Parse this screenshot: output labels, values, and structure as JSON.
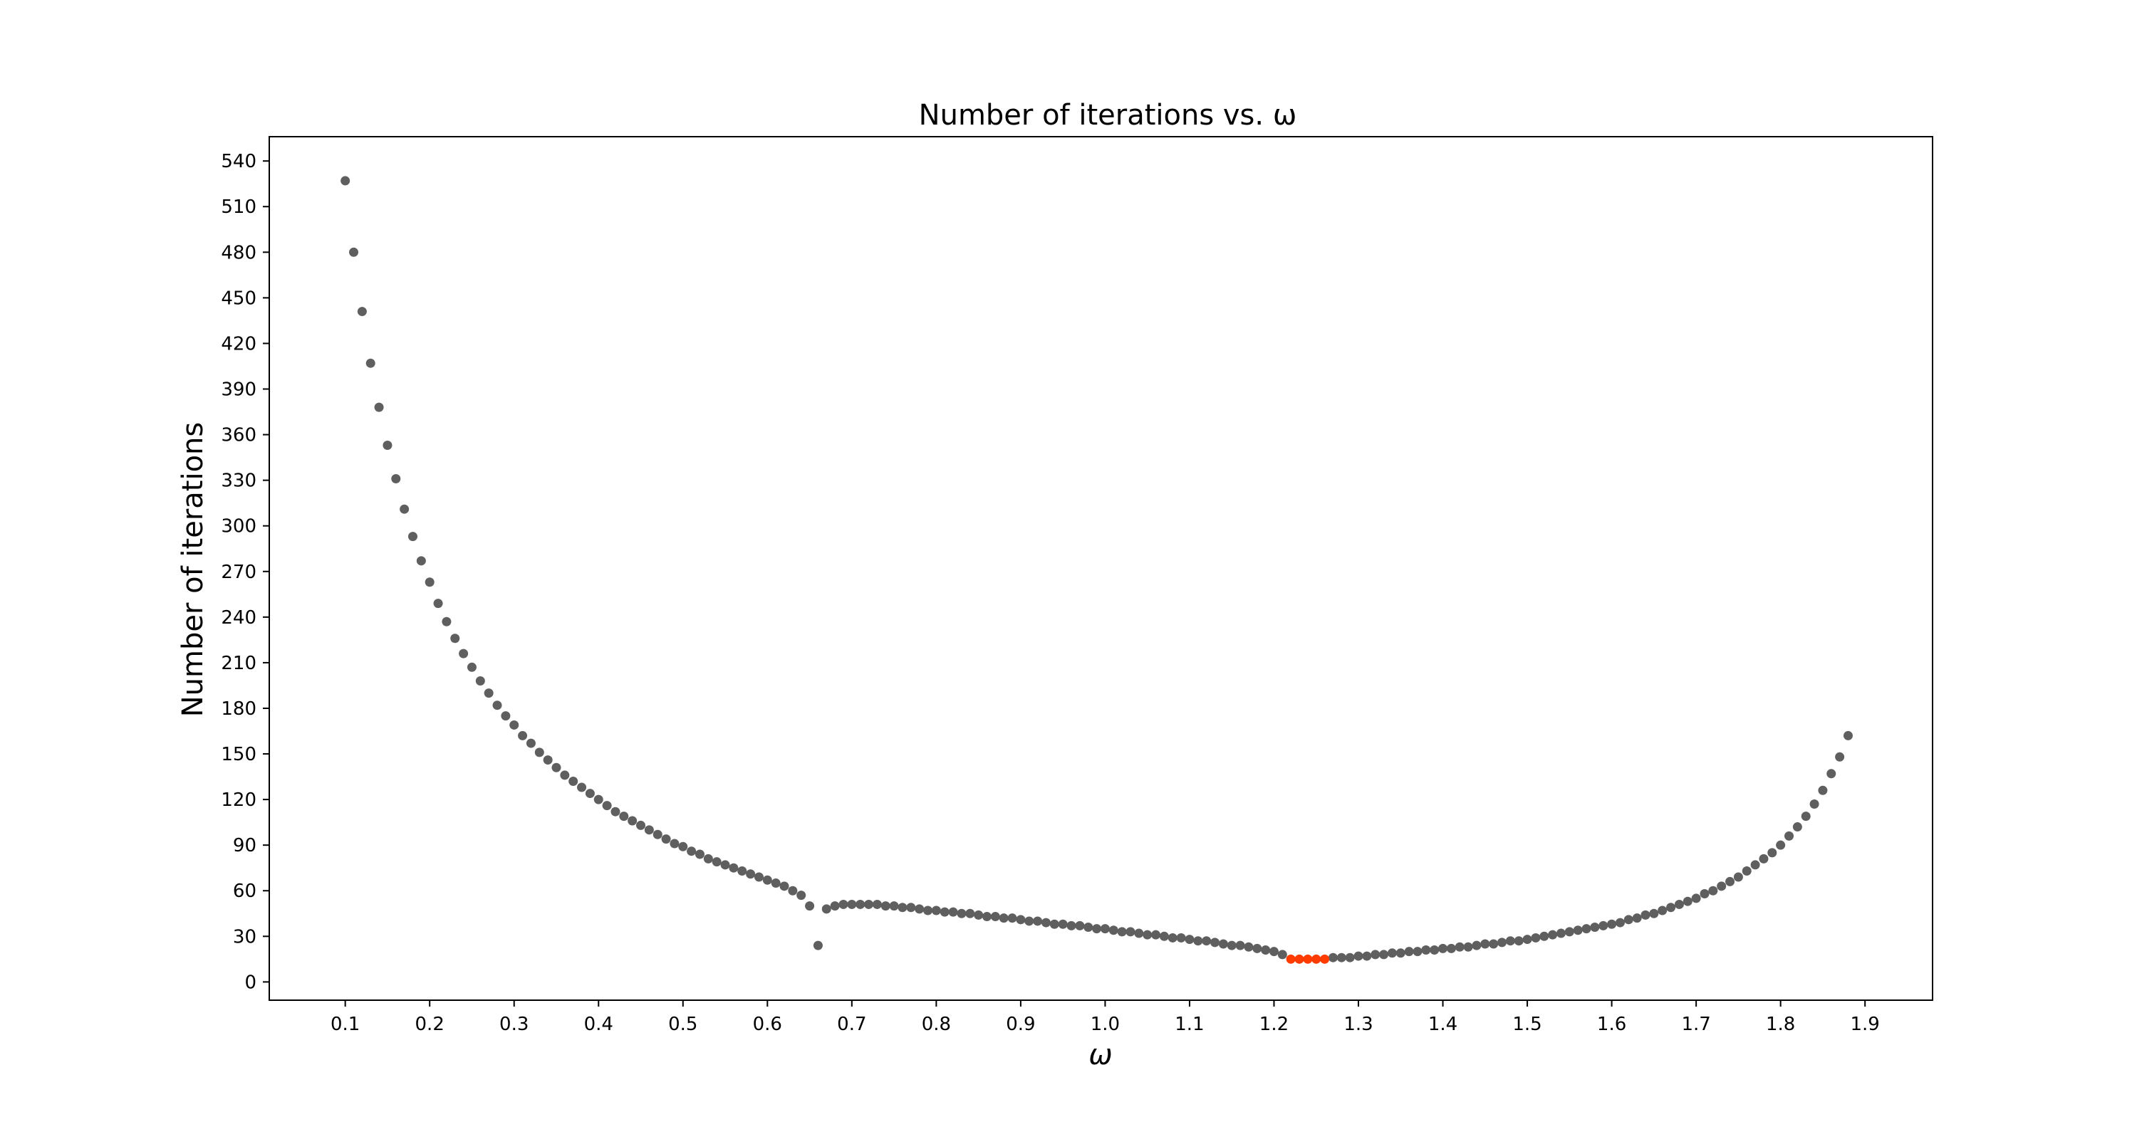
{
  "chart_data": {
    "type": "scatter",
    "title": "Number of iterations vs. ω",
    "xlabel": "ω",
    "ylabel": "Number of iterations",
    "xlim": [
      0.01,
      1.98
    ],
    "ylim": [
      -12,
      556
    ],
    "xticks": [
      0.1,
      0.2,
      0.3,
      0.4,
      0.5,
      0.6,
      0.7,
      0.8,
      0.9,
      1.0,
      1.1,
      1.2,
      1.3,
      1.4,
      1.5,
      1.6,
      1.7,
      1.8,
      1.9
    ],
    "xtick_labels": [
      "0.1",
      "0.2",
      "0.3",
      "0.4",
      "0.5",
      "0.6",
      "0.7",
      "0.8",
      "0.9",
      "1.0",
      "1.1",
      "1.2",
      "1.3",
      "1.4",
      "1.5",
      "1.6",
      "1.7",
      "1.8",
      "1.9"
    ],
    "yticks": [
      0,
      30,
      60,
      90,
      120,
      150,
      180,
      210,
      240,
      270,
      300,
      330,
      360,
      390,
      420,
      450,
      480,
      510,
      540
    ],
    "ytick_labels": [
      "0",
      "30",
      "60",
      "90",
      "120",
      "150",
      "180",
      "210",
      "240",
      "270",
      "300",
      "330",
      "360",
      "390",
      "420",
      "450",
      "480",
      "510",
      "540"
    ],
    "grid": false,
    "legend": "none",
    "colors": {
      "regular": "#5f5f5f",
      "optimal": "#ff3c00"
    },
    "series": [
      {
        "color": "#5f5f5f",
        "points": [
          [
            0.1,
            527
          ],
          [
            0.11,
            480
          ],
          [
            0.12,
            441
          ],
          [
            0.13,
            407
          ],
          [
            0.14,
            378
          ],
          [
            0.15,
            353
          ],
          [
            0.16,
            331
          ],
          [
            0.17,
            311
          ],
          [
            0.18,
            293
          ],
          [
            0.19,
            277
          ],
          [
            0.2,
            263
          ],
          [
            0.21,
            249
          ],
          [
            0.22,
            237
          ],
          [
            0.23,
            226
          ],
          [
            0.24,
            216
          ],
          [
            0.25,
            207
          ],
          [
            0.26,
            198
          ],
          [
            0.27,
            190
          ],
          [
            0.28,
            182
          ],
          [
            0.29,
            175
          ],
          [
            0.3,
            169
          ],
          [
            0.31,
            162
          ],
          [
            0.32,
            157
          ],
          [
            0.33,
            151
          ],
          [
            0.34,
            146
          ],
          [
            0.35,
            141
          ],
          [
            0.36,
            136
          ],
          [
            0.37,
            132
          ],
          [
            0.38,
            128
          ],
          [
            0.39,
            124
          ],
          [
            0.4,
            120
          ],
          [
            0.41,
            116
          ],
          [
            0.42,
            112
          ],
          [
            0.43,
            109
          ],
          [
            0.44,
            106
          ],
          [
            0.45,
            103
          ],
          [
            0.46,
            100
          ],
          [
            0.47,
            97
          ],
          [
            0.48,
            94
          ],
          [
            0.49,
            91
          ],
          [
            0.5,
            89
          ],
          [
            0.51,
            86
          ],
          [
            0.52,
            84
          ],
          [
            0.53,
            81
          ],
          [
            0.54,
            79
          ],
          [
            0.55,
            77
          ],
          [
            0.56,
            75
          ],
          [
            0.57,
            73
          ],
          [
            0.58,
            71
          ],
          [
            0.59,
            69
          ],
          [
            0.6,
            67
          ],
          [
            0.61,
            65
          ],
          [
            0.62,
            63
          ],
          [
            0.63,
            60
          ],
          [
            0.64,
            57
          ],
          [
            0.65,
            50
          ],
          [
            0.66,
            24
          ],
          [
            0.67,
            48
          ],
          [
            0.68,
            50
          ],
          [
            0.69,
            51
          ],
          [
            0.7,
            51
          ],
          [
            0.71,
            51
          ],
          [
            0.72,
            51
          ],
          [
            0.73,
            51
          ],
          [
            0.74,
            50
          ],
          [
            0.75,
            50
          ],
          [
            0.76,
            49
          ],
          [
            0.77,
            49
          ],
          [
            0.78,
            48
          ],
          [
            0.79,
            47
          ],
          [
            0.8,
            47
          ],
          [
            0.81,
            46
          ],
          [
            0.82,
            46
          ],
          [
            0.83,
            45
          ],
          [
            0.84,
            45
          ],
          [
            0.85,
            44
          ],
          [
            0.86,
            43
          ],
          [
            0.87,
            43
          ],
          [
            0.88,
            42
          ],
          [
            0.89,
            42
          ],
          [
            0.9,
            41
          ],
          [
            0.91,
            40
          ],
          [
            0.92,
            40
          ],
          [
            0.93,
            39
          ],
          [
            0.94,
            38
          ],
          [
            0.95,
            38
          ],
          [
            0.96,
            37
          ],
          [
            0.97,
            37
          ],
          [
            0.98,
            36
          ],
          [
            0.99,
            35
          ],
          [
            1.0,
            35
          ],
          [
            1.01,
            34
          ],
          [
            1.02,
            33
          ],
          [
            1.03,
            33
          ],
          [
            1.04,
            32
          ],
          [
            1.05,
            31
          ],
          [
            1.06,
            31
          ],
          [
            1.07,
            30
          ],
          [
            1.08,
            29
          ],
          [
            1.09,
            29
          ],
          [
            1.1,
            28
          ],
          [
            1.11,
            27
          ],
          [
            1.12,
            27
          ],
          [
            1.13,
            26
          ],
          [
            1.14,
            25
          ],
          [
            1.15,
            24
          ],
          [
            1.16,
            24
          ],
          [
            1.17,
            23
          ],
          [
            1.18,
            22
          ],
          [
            1.19,
            21
          ],
          [
            1.2,
            20
          ],
          [
            1.21,
            18
          ],
          [
            1.27,
            16
          ],
          [
            1.28,
            16
          ],
          [
            1.29,
            16
          ],
          [
            1.3,
            17
          ],
          [
            1.31,
            17
          ],
          [
            1.32,
            18
          ],
          [
            1.33,
            18
          ],
          [
            1.34,
            19
          ],
          [
            1.35,
            19
          ],
          [
            1.36,
            20
          ],
          [
            1.37,
            20
          ],
          [
            1.38,
            21
          ],
          [
            1.39,
            21
          ],
          [
            1.4,
            22
          ],
          [
            1.41,
            22
          ],
          [
            1.42,
            23
          ],
          [
            1.43,
            23
          ],
          [
            1.44,
            24
          ],
          [
            1.45,
            25
          ],
          [
            1.46,
            25
          ],
          [
            1.47,
            26
          ],
          [
            1.48,
            27
          ],
          [
            1.49,
            27
          ],
          [
            1.5,
            28
          ],
          [
            1.51,
            29
          ],
          [
            1.52,
            30
          ],
          [
            1.53,
            31
          ],
          [
            1.54,
            32
          ],
          [
            1.55,
            33
          ],
          [
            1.56,
            34
          ],
          [
            1.57,
            35
          ],
          [
            1.58,
            36
          ],
          [
            1.59,
            37
          ],
          [
            1.6,
            38
          ],
          [
            1.61,
            39
          ],
          [
            1.62,
            41
          ],
          [
            1.63,
            42
          ],
          [
            1.64,
            44
          ],
          [
            1.65,
            45
          ],
          [
            1.66,
            47
          ],
          [
            1.67,
            49
          ],
          [
            1.68,
            51
          ],
          [
            1.69,
            53
          ],
          [
            1.7,
            55
          ],
          [
            1.71,
            58
          ],
          [
            1.72,
            60
          ],
          [
            1.73,
            63
          ],
          [
            1.74,
            66
          ],
          [
            1.75,
            69
          ],
          [
            1.76,
            73
          ],
          [
            1.77,
            77
          ],
          [
            1.78,
            81
          ],
          [
            1.79,
            85
          ],
          [
            1.8,
            90
          ],
          [
            1.81,
            96
          ],
          [
            1.82,
            102
          ],
          [
            1.83,
            109
          ],
          [
            1.84,
            117
          ],
          [
            1.85,
            126
          ],
          [
            1.86,
            137
          ],
          [
            1.87,
            148
          ],
          [
            1.88,
            162
          ]
        ]
      },
      {
        "color": "#ff3c00",
        "points": [
          [
            1.22,
            15
          ],
          [
            1.23,
            15
          ],
          [
            1.24,
            15
          ],
          [
            1.25,
            15
          ],
          [
            1.26,
            15
          ]
        ]
      }
    ]
  }
}
